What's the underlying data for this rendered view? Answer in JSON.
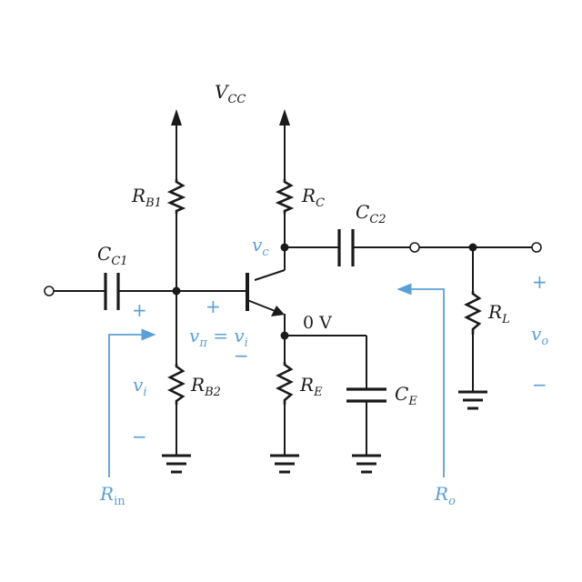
{
  "labels": {
    "vcc": {
      "main": "V",
      "sub": "CC"
    },
    "rb1": {
      "main": "R",
      "sub": "B1"
    },
    "rc": {
      "main": "R",
      "sub": "C"
    },
    "cc1": {
      "main": "C",
      "sub": "C1"
    },
    "cc2": {
      "main": "C",
      "sub": "C2"
    },
    "rb2": {
      "main": "R",
      "sub": "B2"
    },
    "re": {
      "main": "R",
      "sub": "E"
    },
    "ce": {
      "main": "C",
      "sub": "E"
    },
    "rl": {
      "main": "R",
      "sub": "L"
    },
    "vc": {
      "main": "v",
      "sub": "c"
    },
    "vpi": {
      "main": "v",
      "sub": "π",
      "eq": " = ",
      "main2": "v",
      "sub2": "i"
    },
    "zero_v": "0 V",
    "vi": {
      "main": "v",
      "sub": "i"
    },
    "vo": {
      "main": "v",
      "sub": "o"
    },
    "rin": {
      "main": "R",
      "sub": "in"
    },
    "ro": {
      "main": "R",
      "sub": "o"
    }
  },
  "signs": {
    "plus": "+",
    "minus": "−"
  },
  "colors": {
    "wire": "#1a1a1a",
    "annotation": "#5aa0d8"
  },
  "icons": [
    "resistor-icon",
    "capacitor-icon",
    "npn-transistor-icon",
    "ground-icon",
    "arrow-icon"
  ]
}
